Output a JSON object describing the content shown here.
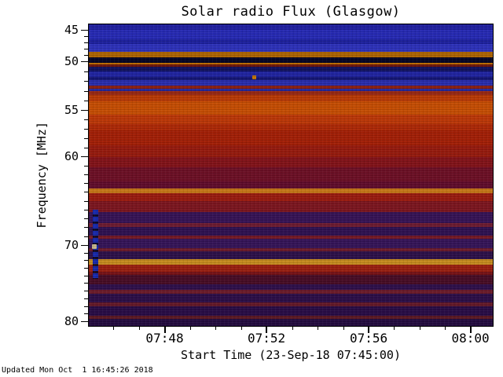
{
  "title": "Solar radio Flux (Glasgow)",
  "footer": "Updated Mon Oct  1 16:45:26 2018",
  "x_axis": {
    "label": "Start Time (23-Sep-18 07:45:00)",
    "total_minutes": 15.9,
    "major_minutes": [
      3,
      7,
      11,
      15
    ],
    "ticks": [
      {
        "label": "07:48",
        "pos": 0.189
      },
      {
        "label": "07:52",
        "pos": 0.44
      },
      {
        "label": "07:56",
        "pos": 0.692
      },
      {
        "label": "08:00",
        "pos": 0.943
      }
    ]
  },
  "y_axis": {
    "label": "Frequency [MHz]",
    "ticks": [
      {
        "label": "45",
        "freq": 45,
        "pos": 0.021
      },
      {
        "label": "50",
        "freq": 50,
        "pos": 0.125
      },
      {
        "label": "55",
        "freq": 55,
        "pos": 0.286
      },
      {
        "label": "60",
        "freq": 60,
        "pos": 0.439
      },
      {
        "label": "70",
        "freq": 70,
        "pos": 0.73
      },
      {
        "label": "80",
        "freq": 80,
        "pos": 0.982
      }
    ]
  },
  "chart_data": {
    "type": "heatmap",
    "title": "Solar radio Flux (Glasgow)",
    "xlabel": "Start Time (23-Sep-18 07:45:00)",
    "ylabel": "Frequency [MHz]",
    "x_range": [
      "07:45:00",
      "08:00:57"
    ],
    "y_range": [
      44,
      80.7
    ],
    "x_ticks": [
      "07:48",
      "07:52",
      "07:56",
      "08:00"
    ],
    "y_ticks": [
      45,
      50,
      55,
      60,
      70,
      80
    ],
    "legend": "none",
    "description": "e-Callisto style dynamic radio spectrogram; horizontal colored bands are frequency channels, warm colors indicate high flux, blue/purple low flux",
    "bands_legend": "a=start fraction of plot height (top), b=end fraction, c=display color, f=approx frequency range in MHz, p=texture pattern",
    "bands": [
      {
        "a": 0.0,
        "b": 0.018,
        "c": "#2a2acf",
        "f": "44.2-45.0"
      },
      {
        "a": 0.018,
        "b": 0.05,
        "c": "#3136e8",
        "f": "45.0-46.2"
      },
      {
        "a": 0.05,
        "b": 0.066,
        "c": "#262acc",
        "f": "46.2-46.8"
      },
      {
        "a": 0.066,
        "b": 0.091,
        "c": "#3a40f0",
        "f": "46.8-47.8"
      },
      {
        "a": 0.091,
        "b": 0.109,
        "c": "#e08200",
        "f": "47.8-48.6",
        "p": "teeth"
      },
      {
        "a": 0.109,
        "b": 0.128,
        "c": "#06062e",
        "f": "48.6-49.3"
      },
      {
        "a": 0.128,
        "b": 0.134,
        "c": "#ef8800",
        "f": "49.3-49.6"
      },
      {
        "a": 0.134,
        "b": 0.141,
        "c": "#8a1a10",
        "f": "49.6-49.9"
      },
      {
        "a": 0.141,
        "b": 0.155,
        "c": "#14167a",
        "f": "49.9-50.4"
      },
      {
        "a": 0.155,
        "b": 0.175,
        "c": "#2a2fd0",
        "f": "50.4-51.2"
      },
      {
        "a": 0.175,
        "b": 0.186,
        "c": "#1a1c96",
        "f": "51.2-51.6"
      },
      {
        "a": 0.186,
        "b": 0.203,
        "c": "#343ae0",
        "f": "51.6-52.3"
      },
      {
        "a": 0.203,
        "b": 0.213,
        "c": "#b02818",
        "f": "52.3-52.7"
      },
      {
        "a": 0.213,
        "b": 0.222,
        "c": "#2f34c8",
        "f": "52.7-53.0"
      },
      {
        "a": 0.222,
        "b": 0.234,
        "c": "#c43418",
        "f": "53.0-53.5"
      },
      {
        "a": 0.234,
        "b": 0.255,
        "c": "#ef4a06",
        "f": "53.5-54.3"
      },
      {
        "a": 0.255,
        "b": 0.3,
        "c": "#ff6404",
        "f": "54.3-55.9"
      },
      {
        "a": 0.3,
        "b": 0.33,
        "c": "#f2470a",
        "f": "55.9-57.0"
      },
      {
        "a": 0.33,
        "b": 0.351,
        "c": "#e03408",
        "f": "57.0-57.8"
      },
      {
        "a": 0.351,
        "b": 0.4,
        "c": "#d22808",
        "f": "57.8-59.6",
        "p": "hstripes"
      },
      {
        "a": 0.4,
        "b": 0.44,
        "c": "#c22212",
        "f": "59.6-61.0",
        "p": "hstripes"
      },
      {
        "a": 0.44,
        "b": 0.473,
        "c": "#a81820",
        "f": "61.0-62.2"
      },
      {
        "a": 0.473,
        "b": 0.52,
        "c": "#8c1430",
        "f": "62.2-63.8",
        "p": "hstripes"
      },
      {
        "a": 0.52,
        "b": 0.545,
        "c": "#7c1038",
        "f": "63.8-64.6"
      },
      {
        "a": 0.545,
        "b": 0.561,
        "c": "#ff9a1e",
        "f": "64.6-65.1"
      },
      {
        "a": 0.561,
        "b": 0.585,
        "c": "#c62414",
        "f": "65.1-66.0"
      },
      {
        "a": 0.585,
        "b": 0.623,
        "c": "#a01c28",
        "f": "66.0-67.3"
      },
      {
        "a": 0.623,
        "b": 0.66,
        "c": "#46186e",
        "f": "67.3-68.6",
        "p": "hstripes"
      },
      {
        "a": 0.66,
        "b": 0.672,
        "c": "#8c2440",
        "f": "68.6-69.0"
      },
      {
        "a": 0.672,
        "b": 0.701,
        "c": "#3c1668",
        "f": "69.0-70.0"
      },
      {
        "a": 0.701,
        "b": 0.712,
        "c": "#962030",
        "f": "70.0-70.4"
      },
      {
        "a": 0.712,
        "b": 0.742,
        "c": "#441a72",
        "f": "70.4-71.5"
      },
      {
        "a": 0.742,
        "b": 0.752,
        "c": "#8c2438",
        "f": "71.5-71.8"
      },
      {
        "a": 0.752,
        "b": 0.779,
        "c": "#3a155e",
        "f": "71.8-72.8"
      },
      {
        "a": 0.779,
        "b": 0.797,
        "c": "#ffb428",
        "f": "72.8-73.4"
      },
      {
        "a": 0.797,
        "b": 0.82,
        "c": "#c62814",
        "f": "73.4-74.2"
      },
      {
        "a": 0.82,
        "b": 0.831,
        "c": "#98161c",
        "f": "74.2-74.6"
      },
      {
        "a": 0.831,
        "b": 0.862,
        "c": "#5c1030",
        "f": "74.6-75.7"
      },
      {
        "a": 0.862,
        "b": 0.88,
        "c": "#3c1460",
        "f": "75.7-76.3"
      },
      {
        "a": 0.88,
        "b": 0.892,
        "c": "#8a2236",
        "f": "76.3-76.8"
      },
      {
        "a": 0.892,
        "b": 0.922,
        "c": "#38125c",
        "f": "76.8-77.9"
      },
      {
        "a": 0.922,
        "b": 0.934,
        "c": "#802034",
        "f": "77.9-78.3"
      },
      {
        "a": 0.934,
        "b": 0.965,
        "c": "#34105a",
        "f": "78.3-79.4"
      },
      {
        "a": 0.965,
        "b": 0.976,
        "c": "#76202e",
        "f": "79.4-79.8"
      },
      {
        "a": 0.976,
        "b": 1.0,
        "c": "#2e0f52",
        "f": "79.8-80.7"
      }
    ],
    "features": [
      {
        "type": "vstreak",
        "label": "blue-vertical-interference-streak",
        "x": 0.01,
        "w": 0.013,
        "y1": 0.615,
        "y2": 0.845,
        "color": "#1f35e0"
      },
      {
        "type": "dot",
        "label": "bright-point-on-streak",
        "x": 0.008,
        "y": 0.728,
        "w": 0.011,
        "h": 0.017,
        "color": "#ffedb4"
      },
      {
        "type": "dot",
        "label": "orange-flux-point",
        "x": 0.405,
        "y": 0.17,
        "w": 0.01,
        "h": 0.013,
        "color": "#ff9a00"
      }
    ]
  }
}
